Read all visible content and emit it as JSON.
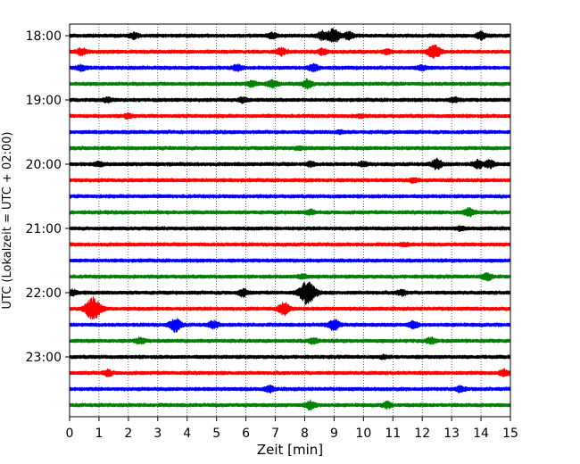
{
  "chart_data": {
    "type": "line",
    "title": "",
    "xlabel": "Zeit  [min]",
    "ylabel": "UTC (Lokalzeit = UTC + 02:00)",
    "xlim": [
      0,
      15
    ],
    "x_ticks": [
      0,
      1,
      2,
      3,
      4,
      5,
      6,
      7,
      8,
      9,
      10,
      11,
      12,
      13,
      14,
      15
    ],
    "y_tick_labels": [
      "18:00",
      "19:00",
      "20:00",
      "21:00",
      "22:00",
      "23:00"
    ],
    "grid": "vertical dotted",
    "trace_interval_min": 15,
    "trace_colors": [
      "#000000",
      "#ff0000",
      "#0000ff",
      "#008000"
    ],
    "traces": [
      {
        "start": "18:00",
        "events": [
          {
            "t": 2.2,
            "a": 0.4
          },
          {
            "t": 6.9,
            "a": 0.4
          },
          {
            "t": 8.6,
            "a": 0.6
          },
          {
            "t": 9.0,
            "a": 1.0
          },
          {
            "t": 9.5,
            "a": 0.5
          },
          {
            "t": 14.0,
            "a": 0.5
          }
        ]
      },
      {
        "start": "18:15",
        "events": [
          {
            "t": 0.4,
            "a": 0.5
          },
          {
            "t": 7.2,
            "a": 0.5
          },
          {
            "t": 8.6,
            "a": 0.4
          },
          {
            "t": 10.8,
            "a": 0.3
          },
          {
            "t": 12.4,
            "a": 1.0
          }
        ]
      },
      {
        "start": "18:30",
        "events": [
          {
            "t": 0.4,
            "a": 0.4
          },
          {
            "t": 5.7,
            "a": 0.4
          },
          {
            "t": 8.3,
            "a": 0.5
          },
          {
            "t": 12.0,
            "a": 0.3
          }
        ]
      },
      {
        "start": "18:45",
        "events": [
          {
            "t": 6.2,
            "a": 0.4
          },
          {
            "t": 6.9,
            "a": 0.5
          },
          {
            "t": 8.1,
            "a": 0.6
          }
        ]
      },
      {
        "start": "19:00",
        "events": [
          {
            "t": 1.3,
            "a": 0.3
          },
          {
            "t": 5.9,
            "a": 0.3
          },
          {
            "t": 13.1,
            "a": 0.3
          }
        ]
      },
      {
        "start": "19:15",
        "events": [
          {
            "t": 2.0,
            "a": 0.3
          },
          {
            "t": 9.9,
            "a": 0.2
          }
        ]
      },
      {
        "start": "19:30",
        "events": [
          {
            "t": 9.2,
            "a": 0.2
          }
        ]
      },
      {
        "start": "19:45",
        "events": [
          {
            "t": 7.8,
            "a": 0.2
          }
        ]
      },
      {
        "start": "20:00",
        "events": [
          {
            "t": 1.0,
            "a": 0.3
          },
          {
            "t": 8.2,
            "a": 0.3
          },
          {
            "t": 10.0,
            "a": 0.3
          },
          {
            "t": 12.5,
            "a": 0.7
          },
          {
            "t": 13.9,
            "a": 0.6
          },
          {
            "t": 14.3,
            "a": 0.5
          }
        ]
      },
      {
        "start": "20:15",
        "events": [
          {
            "t": 11.7,
            "a": 0.3
          }
        ]
      },
      {
        "start": "20:30",
        "events": []
      },
      {
        "start": "20:45",
        "events": [
          {
            "t": 8.2,
            "a": 0.3
          },
          {
            "t": 13.6,
            "a": 0.6
          }
        ]
      },
      {
        "start": "21:00",
        "events": [
          {
            "t": 13.3,
            "a": 0.2
          }
        ]
      },
      {
        "start": "21:15",
        "events": [
          {
            "t": 11.4,
            "a": 0.2
          }
        ]
      },
      {
        "start": "21:30",
        "events": []
      },
      {
        "start": "21:45",
        "events": [
          {
            "t": 7.9,
            "a": 0.3
          },
          {
            "t": 14.2,
            "a": 0.5
          }
        ]
      },
      {
        "start": "22:00",
        "events": [
          {
            "t": 0.1,
            "a": 0.4
          },
          {
            "t": 5.9,
            "a": 0.5
          },
          {
            "t": 8.1,
            "a": 1.7
          },
          {
            "t": 11.3,
            "a": 0.4
          }
        ]
      },
      {
        "start": "22:15",
        "events": [
          {
            "t": 0.8,
            "a": 1.6
          },
          {
            "t": 7.3,
            "a": 0.9
          }
        ]
      },
      {
        "start": "22:30",
        "events": [
          {
            "t": 3.6,
            "a": 0.9
          },
          {
            "t": 4.9,
            "a": 0.5
          },
          {
            "t": 9.0,
            "a": 0.8
          },
          {
            "t": 11.7,
            "a": 0.5
          }
        ]
      },
      {
        "start": "22:45",
        "events": [
          {
            "t": 2.4,
            "a": 0.4
          },
          {
            "t": 8.3,
            "a": 0.4
          },
          {
            "t": 12.3,
            "a": 0.4
          }
        ]
      },
      {
        "start": "23:00",
        "events": [
          {
            "t": 10.7,
            "a": 0.2
          }
        ]
      },
      {
        "start": "23:15",
        "events": [
          {
            "t": 1.3,
            "a": 0.4
          },
          {
            "t": 14.8,
            "a": 0.5
          }
        ]
      },
      {
        "start": "23:30",
        "events": [
          {
            "t": 6.8,
            "a": 0.4
          },
          {
            "t": 13.3,
            "a": 0.4
          }
        ]
      },
      {
        "start": "23:45",
        "events": [
          {
            "t": 8.2,
            "a": 0.6
          },
          {
            "t": 10.8,
            "a": 0.4
          }
        ]
      }
    ]
  }
}
